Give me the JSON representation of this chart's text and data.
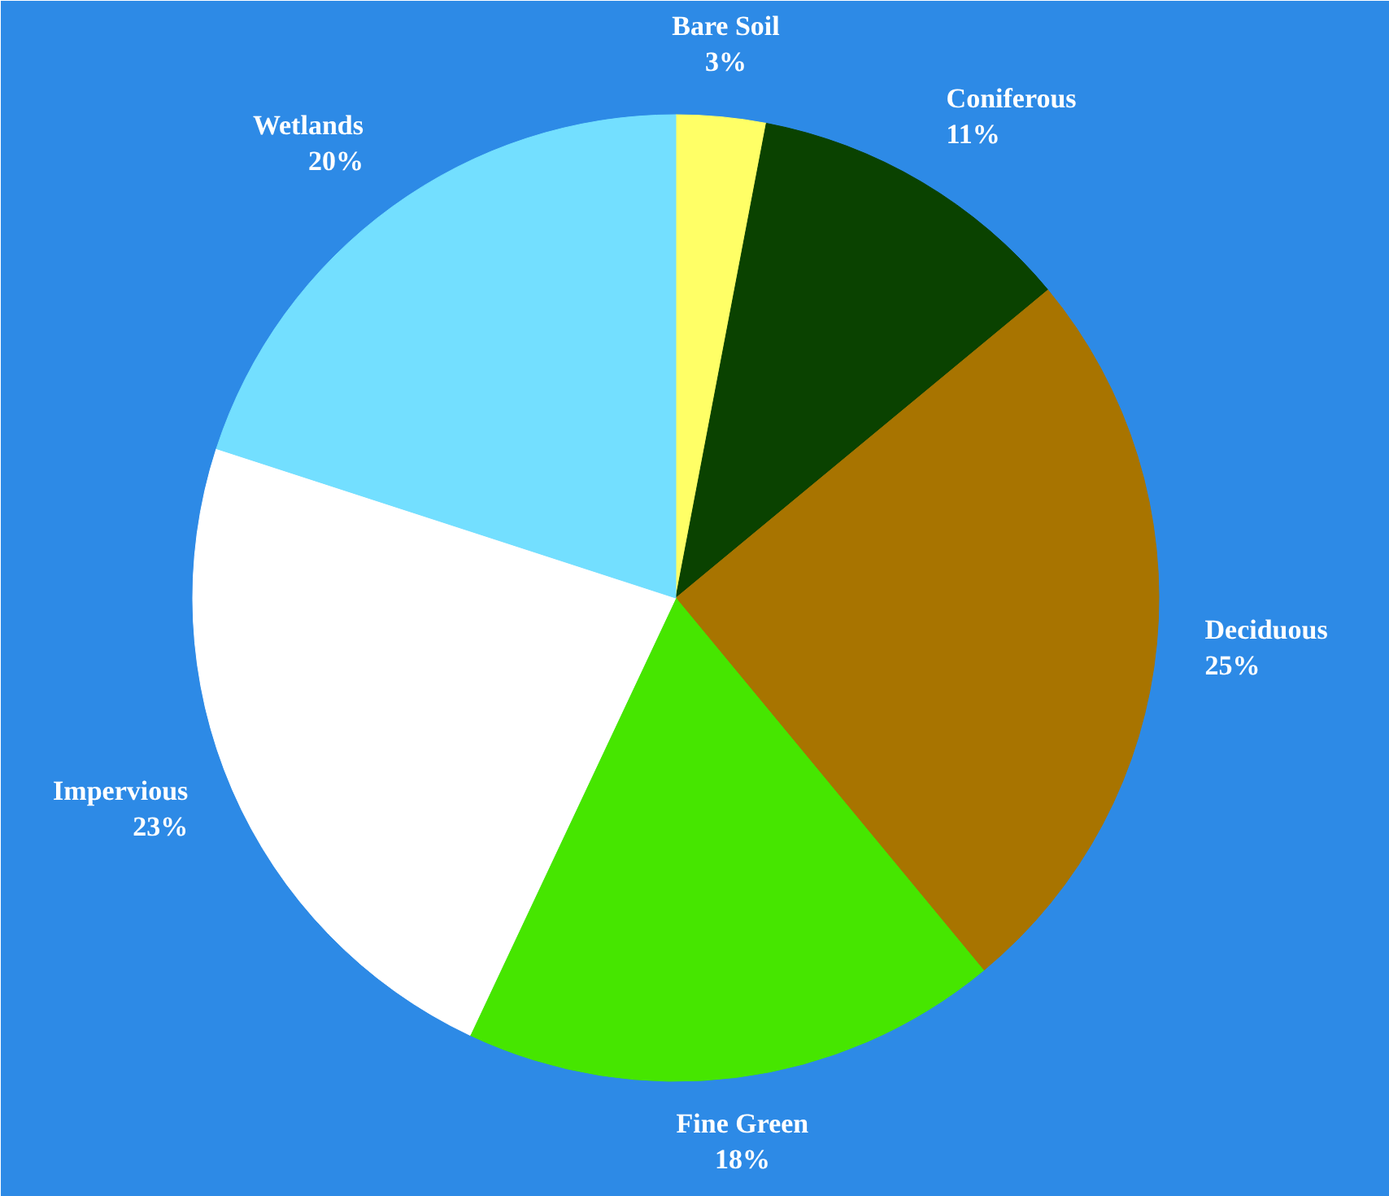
{
  "chart_data": {
    "type": "pie",
    "categories": [
      "Bare Soil",
      "Coniferous",
      "Deciduous",
      "Fine Green",
      "Impervious",
      "Wetlands"
    ],
    "values": [
      3,
      11,
      25,
      18,
      23,
      20
    ],
    "value_labels": [
      "3%",
      "11%",
      "25%",
      "18%",
      "23%",
      "20%"
    ],
    "colors": [
      "#ffff66",
      "#0a4200",
      "#a87400",
      "#46e600",
      "#ffffff",
      "#73dfff"
    ],
    "legend": false
  }
}
